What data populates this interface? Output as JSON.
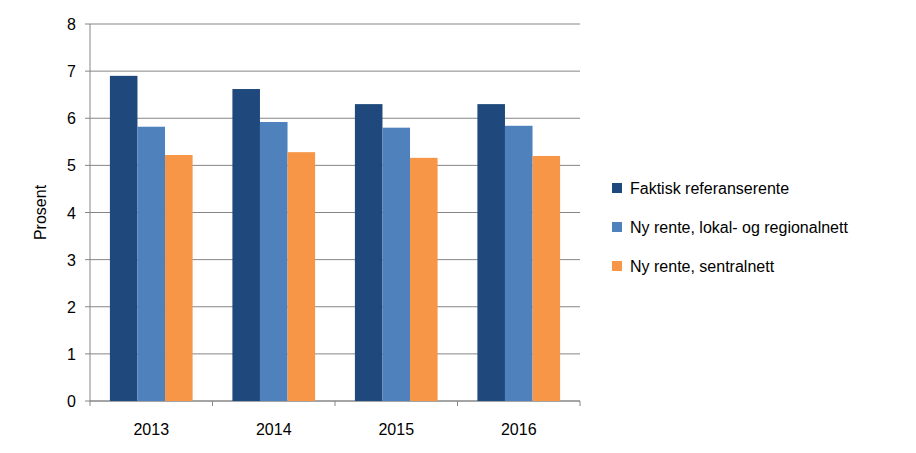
{
  "chart_data": {
    "type": "bar",
    "y_label": "Prosent",
    "categories": [
      "2013",
      "2014",
      "2015",
      "2016"
    ],
    "series": [
      {
        "name": "Faktisk referanserente",
        "color": "#1f497d",
        "values": [
          6.9,
          6.62,
          6.3,
          6.3
        ]
      },
      {
        "name": "Ny rente, lokal- og regionalnett",
        "color": "#4f81bd",
        "values": [
          5.82,
          5.92,
          5.8,
          5.84
        ]
      },
      {
        "name": "Ny rente, sentralnett",
        "color": "#f79646",
        "values": [
          5.22,
          5.28,
          5.16,
          5.2
        ]
      }
    ],
    "ylim": [
      0,
      8
    ],
    "yticks": [
      0,
      1,
      2,
      3,
      4,
      5,
      6,
      7,
      8
    ],
    "grid": true,
    "legend": "right"
  }
}
